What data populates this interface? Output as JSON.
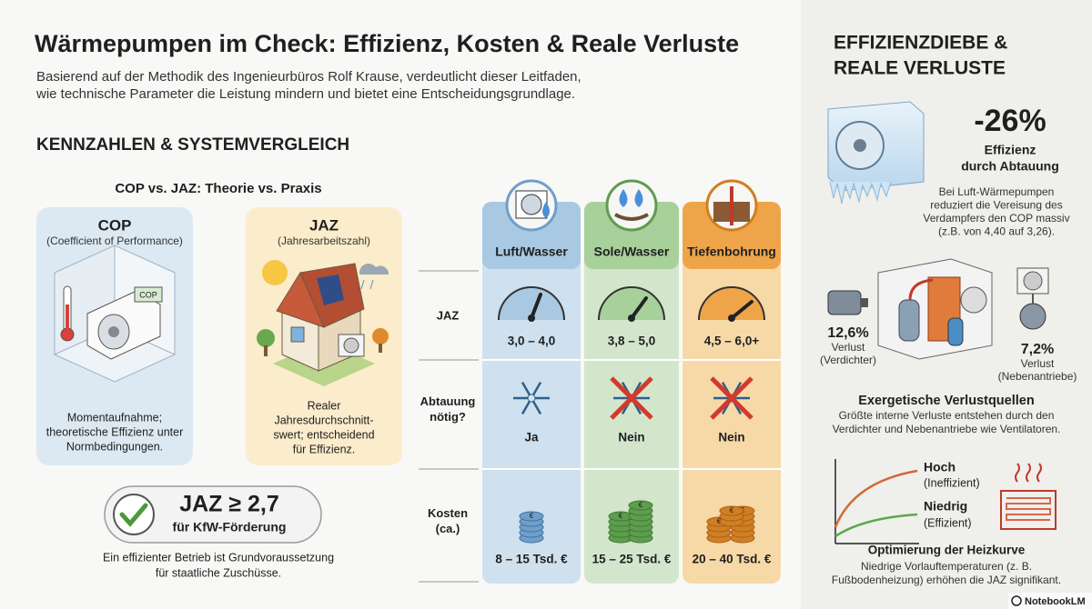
{
  "header": {
    "title": "Wärmepumpen im Check: Effizienz, Kosten & Reale Verluste",
    "subtitle": [
      "Basierend auf der Methodik des Ingenieurbüros Rolf Krause, verdeutlicht dieser Leitfaden,",
      "wie technische Parameter die Leistung mindern und bietet eine Entscheidungsgrundlage."
    ]
  },
  "section": {
    "heading": "KENNZAHLEN & SYSTEMVERGLEICH",
    "comparison_title": "COP vs. JAZ: Theorie vs. Praxis"
  },
  "cards": [
    {
      "title": "COP",
      "subtitle": "(Coefficient of Performance)",
      "label": "COP",
      "description": [
        "Momentaufnahme;",
        "theoretische Effizienz unter",
        "Normbedingungen."
      ]
    },
    {
      "title": "JAZ",
      "subtitle": "(Jahresarbeitszahl)",
      "description": [
        "Realer",
        "Jahresdurchschnitt-",
        "swert; entscheidend",
        "für Effizienz."
      ]
    }
  ],
  "badge": {
    "title": "JAZ ≥ 2,7",
    "subtitle": "für KfW-Förderung",
    "note": [
      "Ein effizienter Betrieb ist Grundvoraussetzung",
      "für staatliche Zuschüsse."
    ]
  },
  "table": {
    "columns": [
      "Luft/Wasser",
      "Sole/Wasser",
      "Tiefenbohrung"
    ],
    "rows": [
      {
        "label": [
          "JAZ"
        ],
        "cells": [
          "3,0 – 4,0",
          "3,8 – 5,0",
          "4,5 – 6,0+"
        ]
      },
      {
        "label": [
          "Abtauung",
          "nötig?"
        ],
        "cells": [
          "Ja",
          "Nein",
          "Nein"
        ]
      },
      {
        "label": [
          "Kosten",
          "(ca.)"
        ],
        "cells": [
          "8 – 15 Tsd. €",
          "15 – 25 Tsd. €",
          "20 – 40 Tsd. €"
        ]
      }
    ]
  },
  "sidebar": {
    "heading": [
      "EFFIZIENZDIEBE &",
      "REALE VERLUSTE"
    ],
    "defrost": {
      "value": "-26%",
      "label": [
        "Effizienz",
        "durch Abtauung"
      ],
      "description": [
        "Bei Luft-Wärmepumpen",
        "reduziert die Vereisung des",
        "Verdampfers den COP massiv",
        "(z.B. von 4,40 auf 3,26)."
      ]
    },
    "losses": [
      {
        "value": "12,6%",
        "label": [
          "Verlust",
          "(Verdichter)"
        ]
      },
      {
        "value": "7,2%",
        "label": [
          "Verlust",
          "(Nebenantriebe)"
        ]
      }
    ],
    "exergy": {
      "title": "Exergetische Verlustquellen",
      "description": [
        "Größte interne Verluste entstehen durch den",
        "Verdichter und Nebenantriebe wie Ventilatoren."
      ]
    },
    "curve": {
      "high": "Hoch",
      "high_note": "(Ineffizient)",
      "low": "Niedrig",
      "low_note": "(Effizient)",
      "title": "Optimierung der Heizkurve",
      "description": [
        "Niedrige Vorlauftemperaturen (z. B.",
        "Fußbodenheizung) erhöhen die JAZ signifikant."
      ]
    }
  },
  "footer": {
    "brand": "NotebookLM"
  }
}
